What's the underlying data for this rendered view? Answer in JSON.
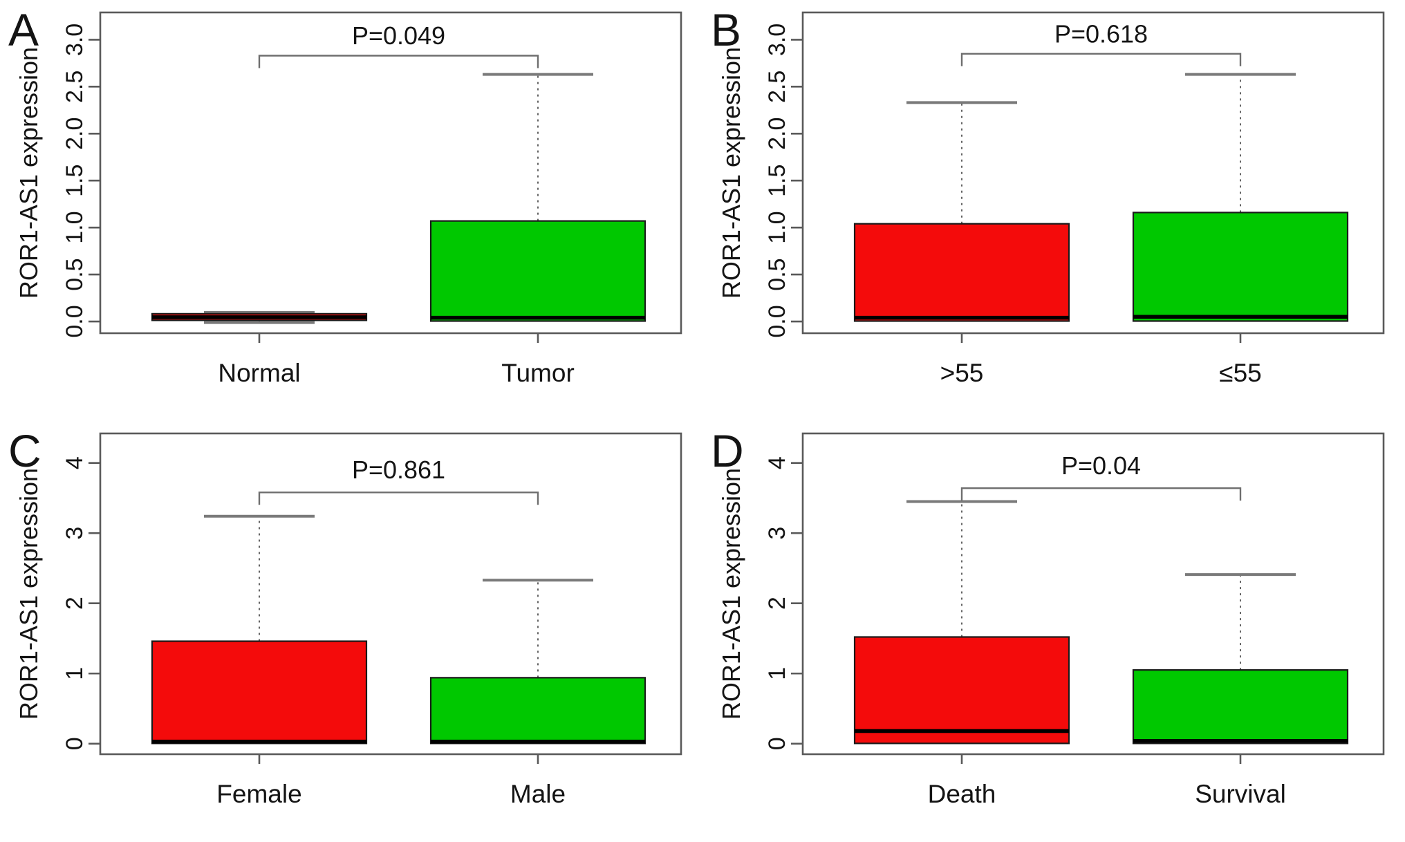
{
  "page": {
    "background": "#ffffff",
    "description": "Four-panel boxplot figure of ROR1-AS1 expression"
  },
  "colors": {
    "red": "#f40b0b",
    "green": "#00c800",
    "box_border": "#1a1a1a",
    "median": "#000000",
    "whisker": "#646464",
    "staple": "#7a7a7a",
    "bracket": "#6e6e6e",
    "axis": "#595959",
    "text": "#141414"
  },
  "chart_data": [
    {
      "type": "boxplot",
      "panel_label": "A",
      "ylabel": "ROR1-AS1 expression",
      "p_value_label": "P=0.049",
      "significance_bracket": {
        "y": 2.83,
        "text_y": 2.95
      },
      "ylim": [
        -0.125,
        3.29
      ],
      "grid": false,
      "legend": "none",
      "yticks": [
        {
          "v": 0.0,
          "label": "0.0"
        },
        {
          "v": 0.5,
          "label": "0.5"
        },
        {
          "v": 1.0,
          "label": "1.0"
        },
        {
          "v": 1.5,
          "label": "1.5"
        },
        {
          "v": 2.0,
          "label": "2.0"
        },
        {
          "v": 2.5,
          "label": "2.5"
        },
        {
          "v": 3.0,
          "label": "3.0"
        }
      ],
      "categories": [
        "Normal",
        "Tumor"
      ],
      "boxes": [
        {
          "category": "Normal",
          "color_key": "red",
          "min": -0.012,
          "q1": 0.012,
          "median": 0.045,
          "q3": 0.082,
          "max": 0.096
        },
        {
          "category": "Tumor",
          "color_key": "green",
          "min": 0.0,
          "q1": 0.004,
          "median": 0.04,
          "q3": 1.07,
          "max": 2.63
        }
      ]
    },
    {
      "type": "boxplot",
      "panel_label": "B",
      "ylabel": "ROR1-AS1 expression",
      "p_value_label": "P=0.618",
      "significance_bracket": {
        "y": 2.85,
        "text_y": 2.97
      },
      "ylim": [
        -0.125,
        3.29
      ],
      "grid": false,
      "legend": "none",
      "yticks": [
        {
          "v": 0.0,
          "label": "0.0"
        },
        {
          "v": 0.5,
          "label": "0.5"
        },
        {
          "v": 1.0,
          "label": "1.0"
        },
        {
          "v": 1.5,
          "label": "1.5"
        },
        {
          "v": 2.0,
          "label": "2.0"
        },
        {
          "v": 2.5,
          "label": "2.5"
        },
        {
          "v": 3.0,
          "label": "3.0"
        }
      ],
      "categories": [
        ">55",
        "≤55"
      ],
      "boxes": [
        {
          "category": ">55",
          "color_key": "red",
          "min": 0.0,
          "q1": 0.004,
          "median": 0.04,
          "q3": 1.04,
          "max": 2.33
        },
        {
          "category": "≤55",
          "color_key": "green",
          "min": 0.0,
          "q1": 0.004,
          "median": 0.05,
          "q3": 1.16,
          "max": 2.63
        }
      ]
    },
    {
      "type": "boxplot",
      "panel_label": "C",
      "ylabel": "ROR1-AS1 expression",
      "p_value_label": "P=0.861",
      "significance_bracket": {
        "y": 3.58,
        "text_y": 3.78
      },
      "ylim": [
        -0.15,
        4.42
      ],
      "grid": false,
      "legend": "none",
      "yticks": [
        {
          "v": 0,
          "label": "0"
        },
        {
          "v": 1,
          "label": "1"
        },
        {
          "v": 2,
          "label": "2"
        },
        {
          "v": 3,
          "label": "3"
        },
        {
          "v": 4,
          "label": "4"
        }
      ],
      "categories": [
        "Female",
        "Male"
      ],
      "boxes": [
        {
          "category": "Female",
          "color_key": "red",
          "min": 0.0,
          "q1": 0.004,
          "median": 0.03,
          "q3": 1.46,
          "max": 3.24
        },
        {
          "category": "Male",
          "color_key": "green",
          "min": 0.0,
          "q1": 0.004,
          "median": 0.03,
          "q3": 0.94,
          "max": 2.33
        }
      ]
    },
    {
      "type": "boxplot",
      "panel_label": "D",
      "ylabel": "ROR1-AS1 expression",
      "p_value_label": "P=0.04",
      "significance_bracket": {
        "y": 3.64,
        "text_y": 3.84
      },
      "ylim": [
        -0.15,
        4.42
      ],
      "grid": false,
      "legend": "none",
      "yticks": [
        {
          "v": 0,
          "label": "0"
        },
        {
          "v": 1,
          "label": "1"
        },
        {
          "v": 2,
          "label": "2"
        },
        {
          "v": 3,
          "label": "3"
        },
        {
          "v": 4,
          "label": "4"
        }
      ],
      "categories": [
        "Death",
        "Survival"
      ],
      "boxes": [
        {
          "category": "Death",
          "color_key": "red",
          "min": 0.0,
          "q1": 0.004,
          "median": 0.18,
          "q3": 1.52,
          "max": 3.45
        },
        {
          "category": "Survival",
          "color_key": "green",
          "min": 0.0,
          "q1": 0.004,
          "median": 0.04,
          "q3": 1.05,
          "max": 2.41
        }
      ]
    }
  ]
}
